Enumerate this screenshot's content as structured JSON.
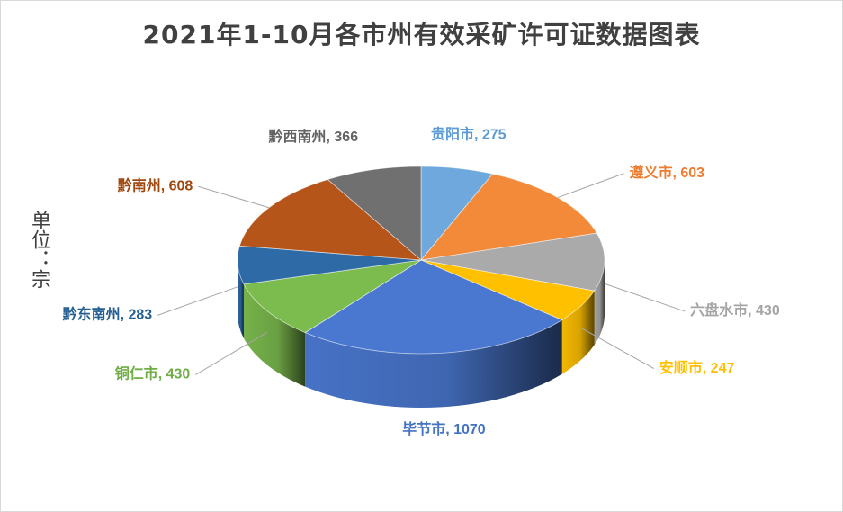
{
  "chart_data": {
    "type": "pie",
    "title": "2021年1-10月各市州有效采矿许可证数据图表",
    "unit_label": "单位：宗",
    "slices": [
      {
        "name": "贵阳市",
        "value": 275,
        "color": "#6FA8DC",
        "label": "贵阳市, 275"
      },
      {
        "name": "遵义市",
        "value": 603,
        "color": "#F28A3A",
        "label": "遵义市, 603"
      },
      {
        "name": "六盘水市",
        "value": 430,
        "color": "#AAAAAA",
        "label": "六盘水市, 430"
      },
      {
        "name": "安顺市",
        "value": 247,
        "color": "#FFC000",
        "label": "安顺市, 247"
      },
      {
        "name": "毕节市",
        "value": 1070,
        "color": "#4A78D0",
        "label": "毕节市, 1070"
      },
      {
        "name": "铜仁市",
        "value": 430,
        "color": "#7CBB4E",
        "label": "铜仁市, 430"
      },
      {
        "name": "黔东南州",
        "value": 283,
        "color": "#2E6AA6",
        "label": "黔东南州, 283"
      },
      {
        "name": "黔南州",
        "value": 608,
        "color": "#B5551A",
        "label": "黔南州, 608"
      },
      {
        "name": "黔西南州",
        "value": 366,
        "color": "#707070",
        "label": "黔西南州, 366"
      }
    ],
    "label_colors": {
      "贵阳市": "#5B9BD5",
      "遵义市": "#ED7D31",
      "六盘水市": "#A5A5A5",
      "安顺市": "#FFC000",
      "毕节市": "#4472C4",
      "铜仁市": "#70AD47",
      "黔东南州": "#255E91",
      "黔南州": "#9E480E",
      "黔西南州": "#636363"
    },
    "start_angle_deg": -90,
    "direction": "clockwise",
    "style": "3d"
  }
}
